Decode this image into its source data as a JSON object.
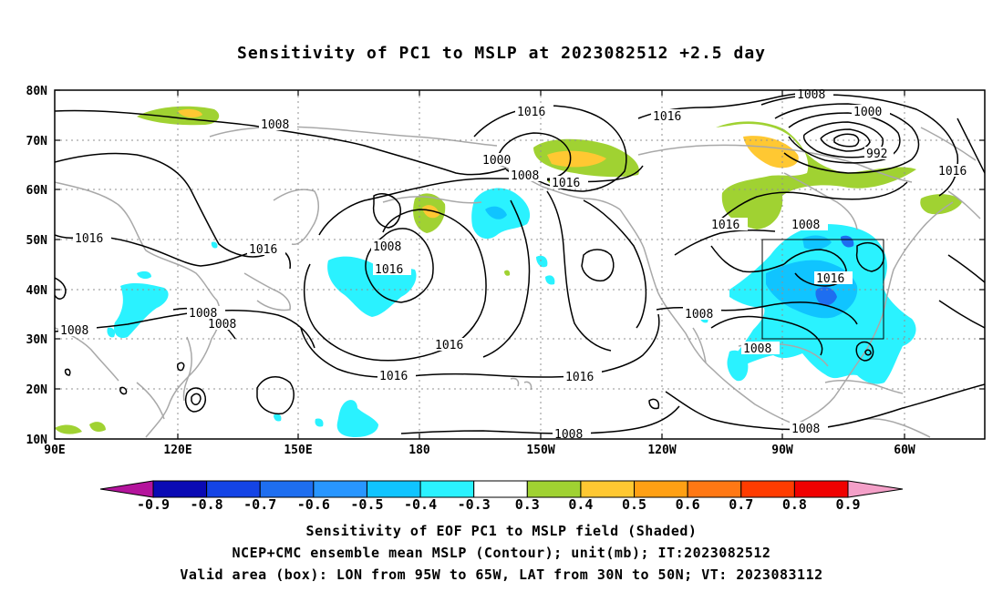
{
  "title": "Sensitivity of PC1 to MSLP at 2023082512 +2.5 day",
  "lat_labels": [
    "80N",
    "70N",
    "60N",
    "50N",
    "40N",
    "30N",
    "20N",
    "10N"
  ],
  "lon_labels": [
    "90E",
    "120E",
    "150E",
    "180",
    "150W",
    "120W",
    "90W",
    "60W"
  ],
  "contour_labels": [
    "1008",
    "1016",
    "1008",
    "1000",
    "1016",
    "1000",
    "992",
    "1016",
    "1000",
    "1008",
    "1016",
    "1016",
    "1008",
    "1016",
    "1016",
    "1008",
    "1008",
    "1008",
    "1016",
    "1016",
    "1008",
    "1016",
    "1016",
    "1008",
    "1008",
    "1008",
    "1008",
    "1008"
  ],
  "colorbar": {
    "labels": [
      "-0.9",
      "-0.8",
      "-0.7",
      "-0.6",
      "-0.5",
      "-0.4",
      "-0.3",
      "0.3",
      "0.4",
      "0.5",
      "0.6",
      "0.7",
      "0.8",
      "0.9"
    ],
    "colors": [
      "#0a0ab4",
      "#1444e6",
      "#1e6ef0",
      "#2896ff",
      "#10c4ff",
      "#2af2ff",
      "#ffffff",
      "#a0d232",
      "#ffc832",
      "#ffa014",
      "#ff7814",
      "#ff3c00",
      "#f00000"
    ],
    "left_arrow": "#b4149c",
    "right_arrow": "#f4a0c8"
  },
  "valid_box": {
    "lon_min": -95,
    "lon_max": -65,
    "lat_min": 30,
    "lat_max": 50
  },
  "captions": [
    "Sensitivity of EOF PC1 to MSLP field (Shaded)",
    "NCEP+CMC ensemble mean MSLP (Contour); unit(mb); IT:2023082512",
    "Valid area (box): LON from 95W to 65W, LAT from 30N to 50N; VT: 2023083112"
  ]
}
